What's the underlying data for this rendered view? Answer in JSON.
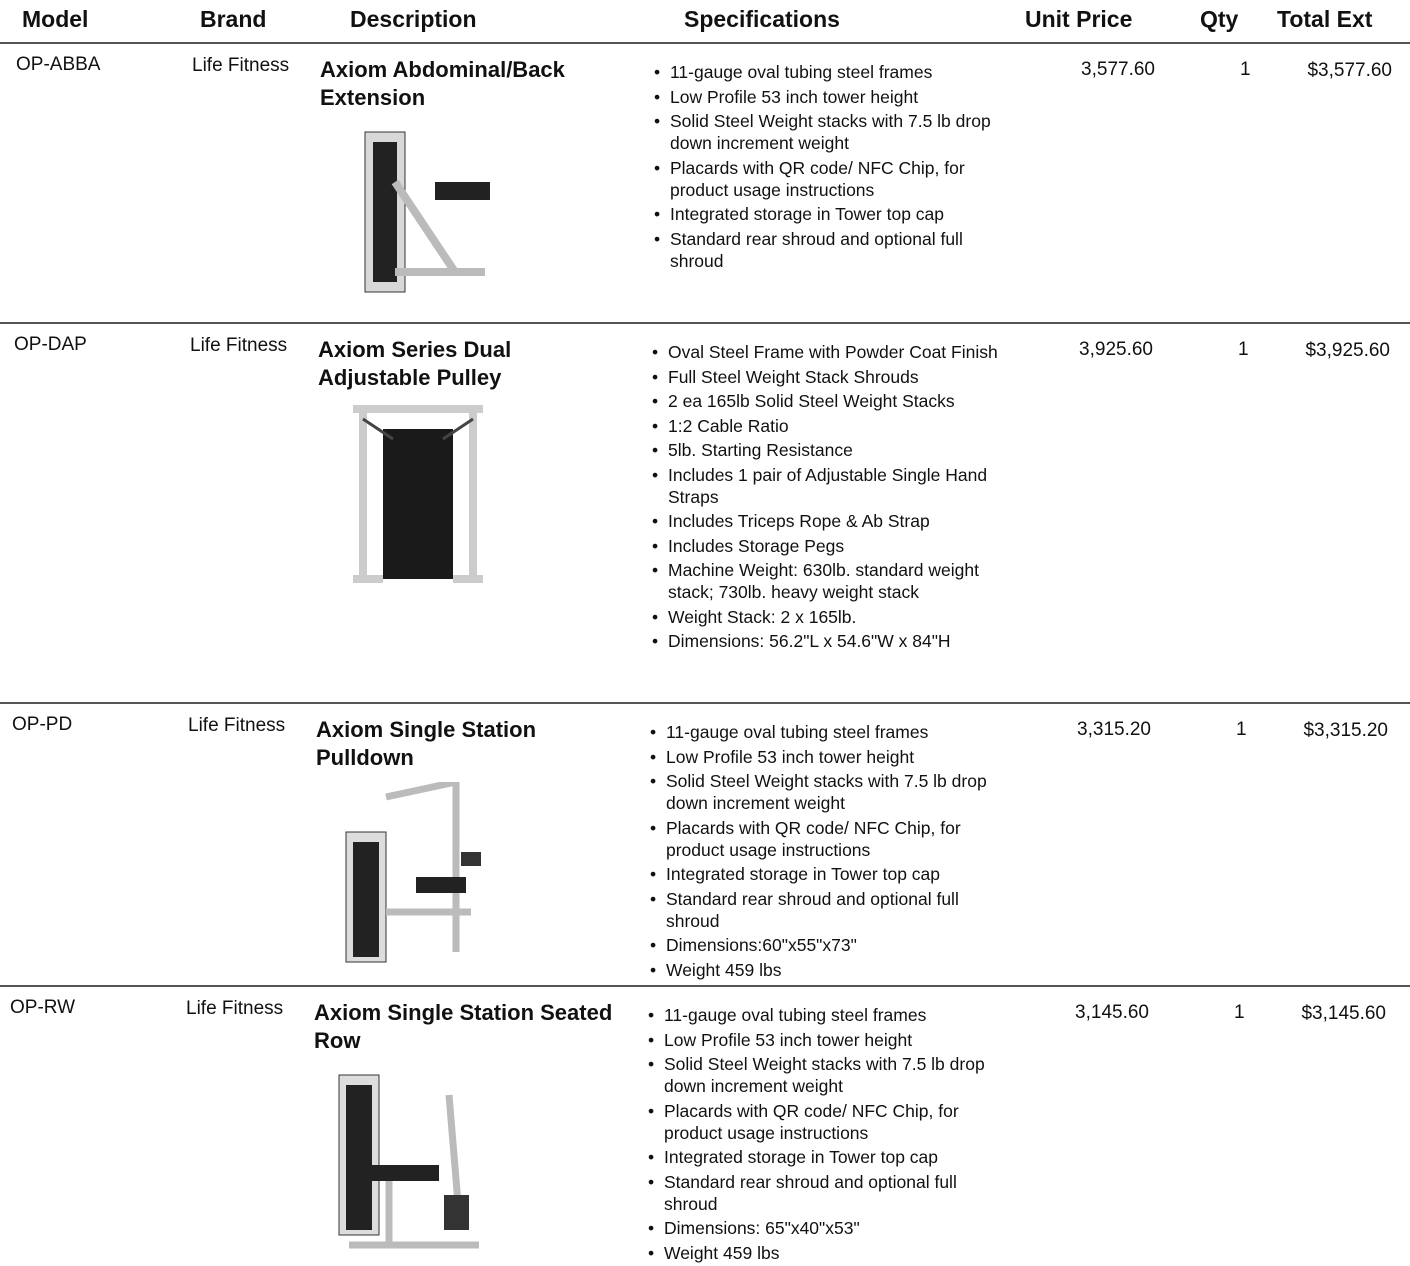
{
  "header": {
    "columns": [
      "Model",
      "Brand",
      "Description",
      "Specifications",
      "Unit Price",
      "Qty",
      "Total Ext"
    ]
  },
  "rows": [
    {
      "model": "OP-ABBA",
      "brand": "Life Fitness",
      "description": "Axiom Abdominal/Back Extension",
      "specs": [
        "11-gauge oval tubing steel frames",
        "Low Profile 53 inch tower height",
        "Solid Steel Weight stacks with 7.5 lb drop down increment weight",
        "Placards with QR code/ NFC Chip, for product usage instructions",
        "Integrated storage in Tower top cap",
        "Standard rear shroud and optional full shroud"
      ],
      "unit_price": "3,577.60",
      "qty": 1,
      "total": "$3,577.60"
    },
    {
      "model": "OP-DAP",
      "brand": "Life Fitness",
      "description": "Axiom Series Dual Adjustable Pulley",
      "specs": [
        "Oval Steel Frame with Powder Coat Finish",
        "Full Steel Weight Stack Shrouds",
        "2 ea 165lb Solid Steel Weight Stacks",
        "1:2 Cable Ratio",
        "5lb. Starting Resistance",
        "Includes 1 pair of Adjustable Single Hand Straps",
        "Includes Triceps Rope & Ab Strap",
        "Includes Storage Pegs",
        "Machine Weight: 630lb. standard weight stack; 730lb. heavy weight stack",
        "Weight Stack: 2 x 165lb.",
        "Dimensions: 56.2\"L x 54.6\"W x 84\"H"
      ],
      "unit_price": "3,925.60",
      "qty": 1,
      "total": "$3,925.60"
    },
    {
      "model": "OP-PD",
      "brand": "Life Fitness",
      "description": "Axiom Single Station Pulldown",
      "specs": [
        "11-gauge oval tubing steel frames",
        "Low Profile 53 inch tower height",
        "Solid Steel Weight stacks with 7.5 lb drop down increment weight",
        "Placards with QR code/ NFC Chip, for product usage instructions",
        "Integrated storage in Tower top cap",
        "Standard rear shroud and optional full shroud",
        "Dimensions:60\"x55\"x73\"",
        "Weight 459 lbs"
      ],
      "unit_price": "3,315.20",
      "qty": 1,
      "total": "$3,315.20"
    },
    {
      "model": "OP-RW",
      "brand": "Life Fitness",
      "description": "Axiom Single Station Seated Row",
      "specs": [
        "11-gauge oval tubing steel frames",
        "Low Profile 53 inch tower height",
        "Solid Steel Weight stacks with 7.5 lb drop down increment weight",
        "Placards with QR code/ NFC Chip, for product usage instructions",
        "Integrated storage in Tower top cap",
        "Standard rear shroud and optional full shroud",
        "Dimensions: 65\"x40\"x53\"",
        "Weight 459 lbs"
      ],
      "unit_price": "3,145.60",
      "qty": 1,
      "total": "$3,145.60"
    }
  ]
}
